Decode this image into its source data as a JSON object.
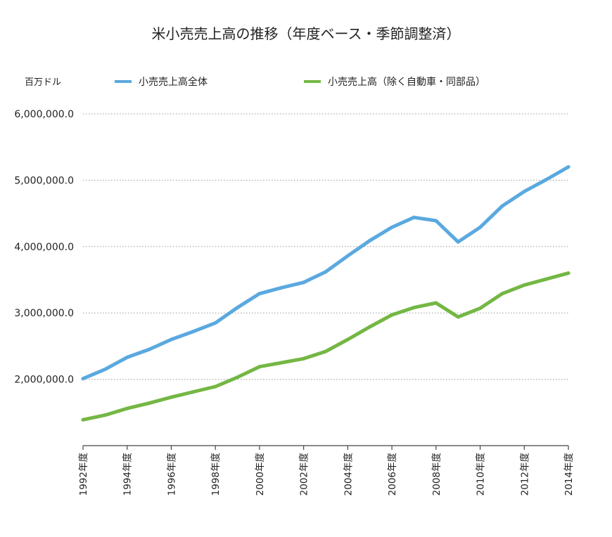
{
  "chart_data": {
    "type": "line",
    "title": "米小売売上高の推移（年度ベース・季節調整済）",
    "unit_label": "百万ドル",
    "xlabel": "",
    "ylabel": "",
    "ylim": [
      1000000,
      6000000
    ],
    "yticks": [
      2000000,
      3000000,
      4000000,
      5000000,
      6000000
    ],
    "ytick_labels": [
      "2,000,000.0",
      "3,000,000.0",
      "4,000,000.0",
      "5,000,000.0",
      "6,000,000.0"
    ],
    "grid": true,
    "legend_position": "top",
    "x": [
      1992,
      1993,
      1994,
      1995,
      1996,
      1997,
      1998,
      1999,
      2000,
      2001,
      2002,
      2003,
      2004,
      2005,
      2006,
      2007,
      2008,
      2009,
      2010,
      2011,
      2012,
      2013,
      2014
    ],
    "xtick_labels": [
      "1992年度",
      "1994年度",
      "1996年度",
      "1998年度",
      "2000年度",
      "2002年度",
      "2004年度",
      "2006年度",
      "2008年度",
      "2010年度",
      "2012年度",
      "2014年度"
    ],
    "xtick_years": [
      1992,
      1994,
      1996,
      1998,
      2000,
      2002,
      2004,
      2006,
      2008,
      2010,
      2012,
      2014
    ],
    "series": [
      {
        "name": "小売売上高全体",
        "color": "#5aa9e0",
        "values": [
          2010000,
          2150000,
          2330000,
          2450000,
          2600000,
          2720000,
          2850000,
          3080000,
          3290000,
          3380000,
          3460000,
          3620000,
          3860000,
          4090000,
          4290000,
          4440000,
          4390000,
          4070000,
          4290000,
          4610000,
          4830000,
          5010000,
          5200000
        ]
      },
      {
        "name": "小売売上高（除く自動車・同部品）",
        "color": "#74b744",
        "values": [
          1390000,
          1460000,
          1560000,
          1640000,
          1730000,
          1810000,
          1890000,
          2030000,
          2190000,
          2250000,
          2310000,
          2420000,
          2600000,
          2790000,
          2970000,
          3080000,
          3150000,
          2940000,
          3070000,
          3290000,
          3420000,
          3510000,
          3600000
        ]
      }
    ]
  }
}
